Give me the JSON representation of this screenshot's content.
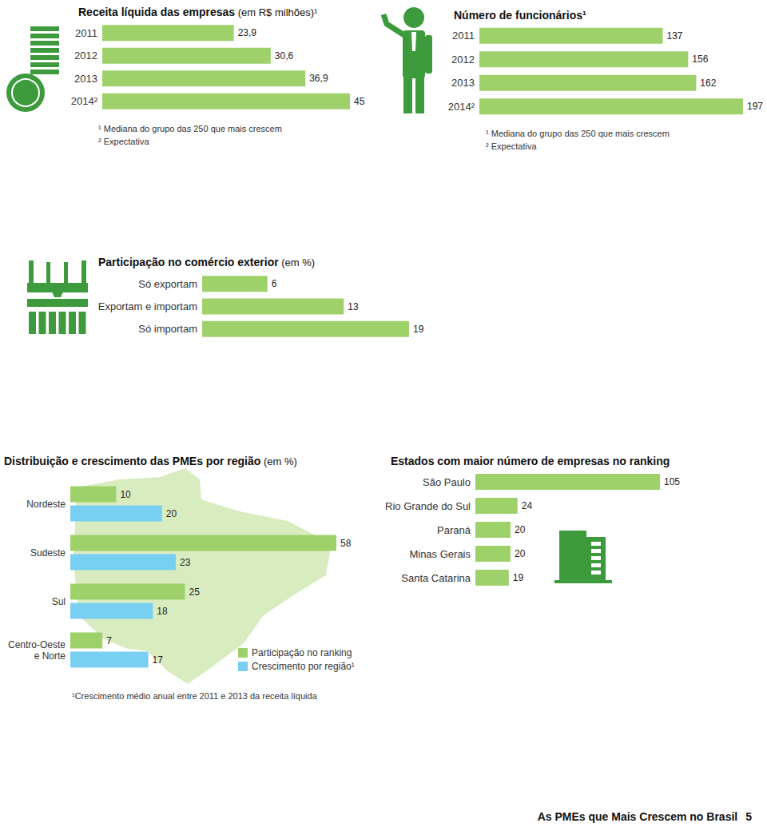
{
  "chart_data": [
    {
      "type": "bar",
      "orientation": "horizontal",
      "title": "Receita líquida das empresas (em R$ milhões)¹",
      "categories": [
        "2011",
        "2012",
        "2013",
        "2014²"
      ],
      "values": [
        23.9,
        30.6,
        36.9,
        45
      ],
      "value_labels": [
        "23,9",
        "30,6",
        "36,9",
        "45"
      ],
      "color": "#9fd16b",
      "xlim": [
        0,
        45
      ],
      "grid": false,
      "data_labels": true,
      "tick_labels": "y",
      "notes": [
        "¹ Mediana do grupo das 250 que mais crescem",
        "² Expectativa"
      ]
    },
    {
      "type": "bar",
      "orientation": "horizontal",
      "title": "Número de funcionários¹",
      "categories": [
        "2011",
        "2012",
        "2013",
        "2014²"
      ],
      "values": [
        137,
        156,
        162,
        197
      ],
      "color": "#9fd16b",
      "xlim": [
        0,
        197
      ],
      "grid": false,
      "data_labels": true,
      "tick_labels": "y",
      "notes": [
        "¹ Mediana do grupo das 250 que mais crescem",
        "² Expectativa"
      ]
    },
    {
      "type": "bar",
      "orientation": "horizontal",
      "title": "Participação no comércio exterior (em %)",
      "categories": [
        "Só exportam",
        "Exportam e importam",
        "Só importam"
      ],
      "values": [
        6,
        13,
        19
      ],
      "color": "#9fd16b",
      "xlim": [
        0,
        19
      ],
      "grid": false,
      "data_labels": true,
      "tick_labels": "y"
    },
    {
      "type": "bar",
      "orientation": "horizontal",
      "title": "Distribuição e crescimento das PMEs por região (em %)",
      "categories": [
        "Nordeste",
        "Sudeste",
        "Sul",
        "Centro-Oeste\ne Norte"
      ],
      "series": [
        {
          "name": "Participação no ranking",
          "color": "#9fd16b",
          "values": [
            10,
            58,
            25,
            7
          ]
        },
        {
          "name": "Crescimento por região¹",
          "color": "#78cff2",
          "values": [
            20,
            23,
            18,
            17
          ]
        }
      ],
      "xlim": [
        0,
        58
      ],
      "grid": false,
      "data_labels": true,
      "tick_labels": "y",
      "legend": "right",
      "notes": [
        "¹Crescimento médio anual entre 2011 e 2013 da receita líquida"
      ]
    },
    {
      "type": "bar",
      "orientation": "horizontal",
      "title": "Estados com maior número de empresas no ranking",
      "categories": [
        "São Paulo",
        "Rio Grande do Sul",
        "Paraná",
        "Minas Gerais",
        "Santa Catarina"
      ],
      "values": [
        105,
        24,
        20,
        20,
        19
      ],
      "color": "#9fd16b",
      "xlim": [
        0,
        105
      ],
      "grid": false,
      "data_labels": true,
      "tick_labels": "y"
    }
  ],
  "footer": {
    "text": "As PMEs que Mais Crescem no Brasil",
    "page": 5
  }
}
